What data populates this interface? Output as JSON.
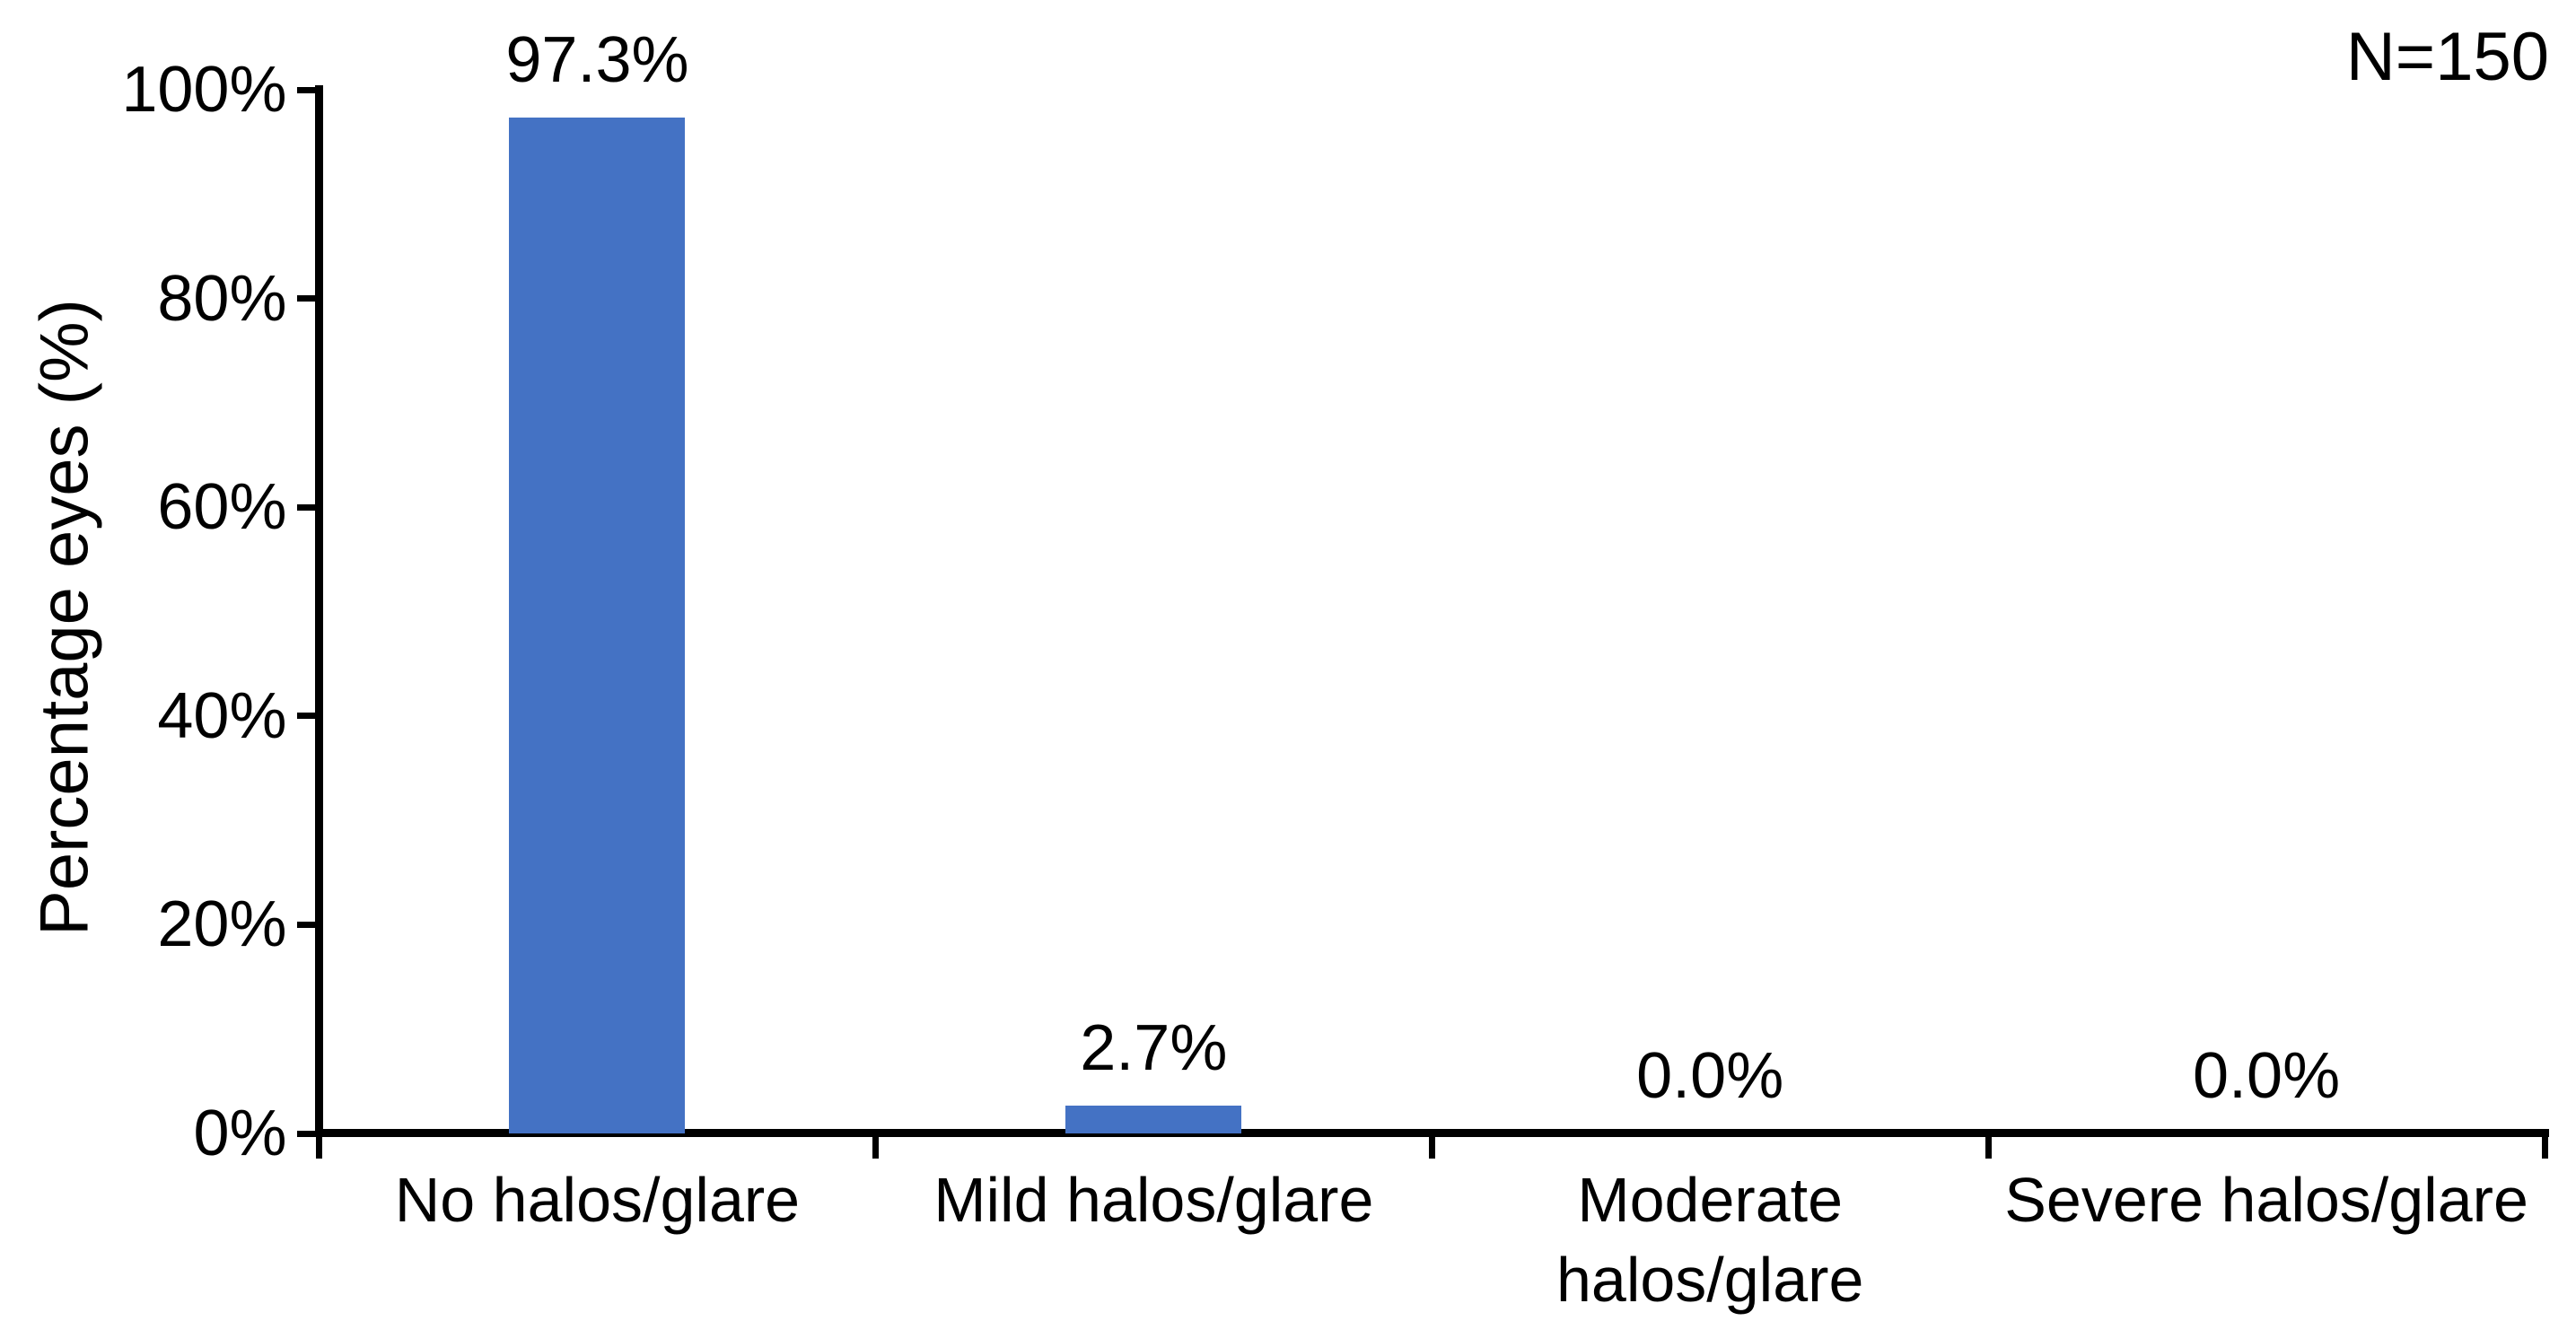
{
  "chart_data": {
    "type": "bar",
    "title": "",
    "categories": [
      "No halos/glare",
      "Mild halos/glare",
      "Moderate halos/glare",
      "Severe halos/glare"
    ],
    "xtick_labels": [
      "No halos/glare",
      "Mild halos/glare",
      "Moderate\nhalos/glare",
      "Severe halos/glare"
    ],
    "values": [
      97.3,
      2.7,
      0.0,
      0.0
    ],
    "value_labels": [
      "97.3%",
      "2.7%",
      "0.0%",
      "0.0%"
    ],
    "xlabel": "",
    "ylabel": "Percentage eyes (%)",
    "ylim": [
      0,
      100
    ],
    "yticks": [
      0,
      20,
      40,
      60,
      80,
      100
    ],
    "ytick_labels": [
      "0%",
      "20%",
      "40%",
      "60%",
      "80%",
      "100%"
    ],
    "annotation": "N=150",
    "bar_color": "#4472C4",
    "axis_color": "#000000",
    "text_color": "#000000",
    "background_color": "#FFFFFF",
    "grid": false,
    "legend_position": "none"
  }
}
